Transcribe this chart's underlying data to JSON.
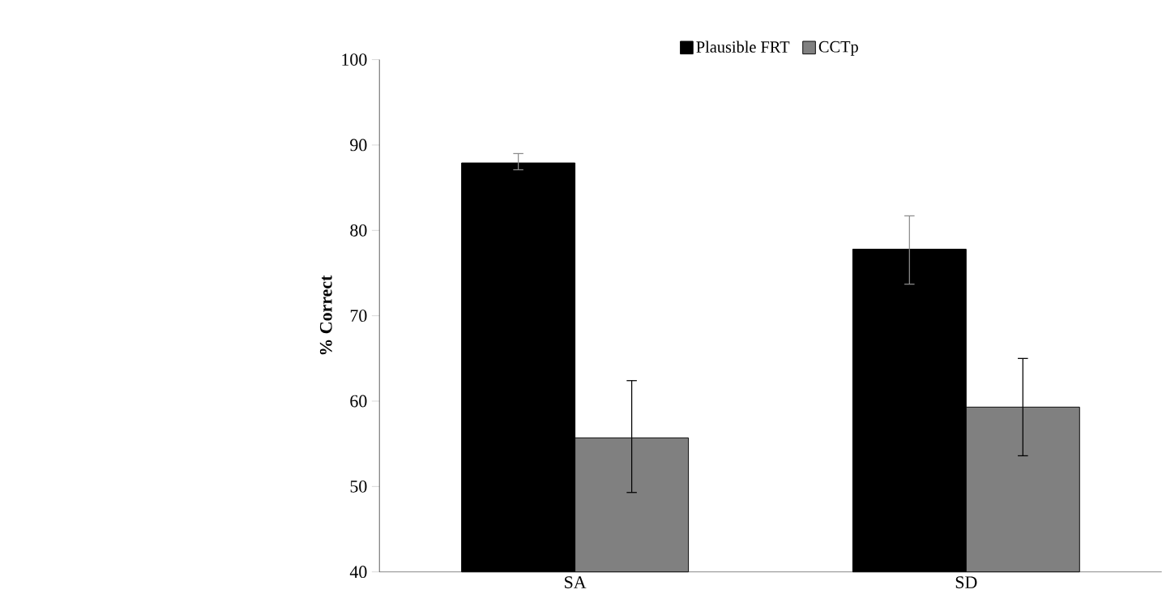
{
  "chart_data": {
    "type": "bar",
    "ylabel": "% Correct",
    "categories": [
      "SA",
      "SD"
    ],
    "series": [
      {
        "name": "Plausible FRT",
        "color": "#000000",
        "values": [
          87.9,
          77.8
        ],
        "errors": [
          [
            87.1,
            89.0
          ],
          [
            73.7,
            81.7
          ]
        ]
      },
      {
        "name": "CCTp",
        "color": "#808080",
        "values": [
          55.7,
          59.3
        ],
        "errors": [
          [
            49.3,
            62.4
          ],
          [
            53.6,
            65.0
          ]
        ]
      }
    ],
    "ylim": [
      40,
      100
    ],
    "yticks": [
      40,
      50,
      60,
      70,
      80,
      90,
      100
    ],
    "grid": false,
    "legend": "top"
  }
}
